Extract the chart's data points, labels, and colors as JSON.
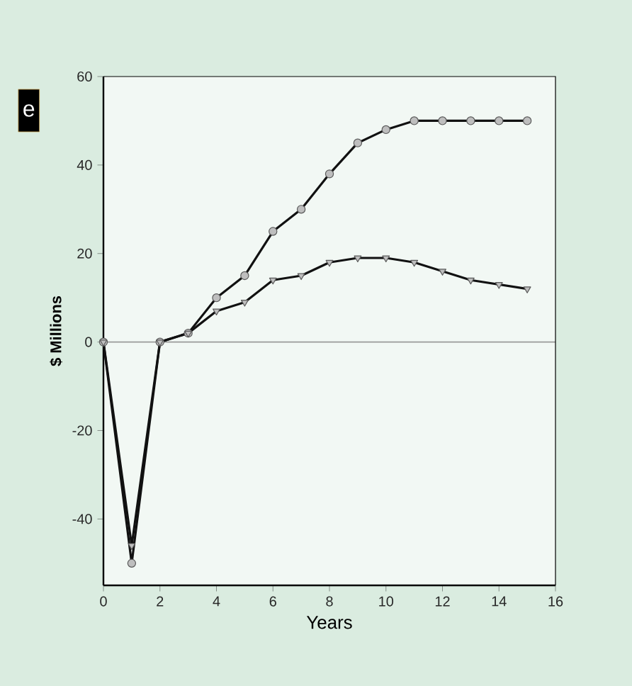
{
  "chart_data": {
    "type": "line",
    "xlabel": "Years",
    "ylabel": "$ Millions",
    "x": [
      0,
      1,
      2,
      3,
      4,
      5,
      6,
      7,
      8,
      9,
      10,
      11,
      12,
      13,
      14,
      15
    ],
    "series": [
      {
        "color": "#111111",
        "marker": "circle",
        "values": [
          0,
          -50,
          0,
          2,
          10,
          15,
          25,
          30,
          38,
          45,
          48,
          50,
          50,
          50,
          50,
          50
        ]
      },
      {
        "color": "#111111",
        "marker": "triangle",
        "values": [
          0,
          -46,
          0,
          2,
          7,
          9,
          14,
          15,
          18,
          19,
          19,
          18,
          16,
          14,
          13,
          12
        ]
      }
    ],
    "xlim": [
      0,
      16
    ],
    "xticks": [
      0,
      2,
      4,
      6,
      8,
      10,
      12,
      14,
      16
    ],
    "ylim": [
      -55,
      60
    ],
    "yticks": [
      -40,
      -20,
      0,
      20,
      40,
      60
    ],
    "ref_lines": [
      {
        "axis": "y",
        "value": 0,
        "color": "#999999"
      }
    ],
    "annotations": [
      "e"
    ],
    "line_style": "solid"
  }
}
